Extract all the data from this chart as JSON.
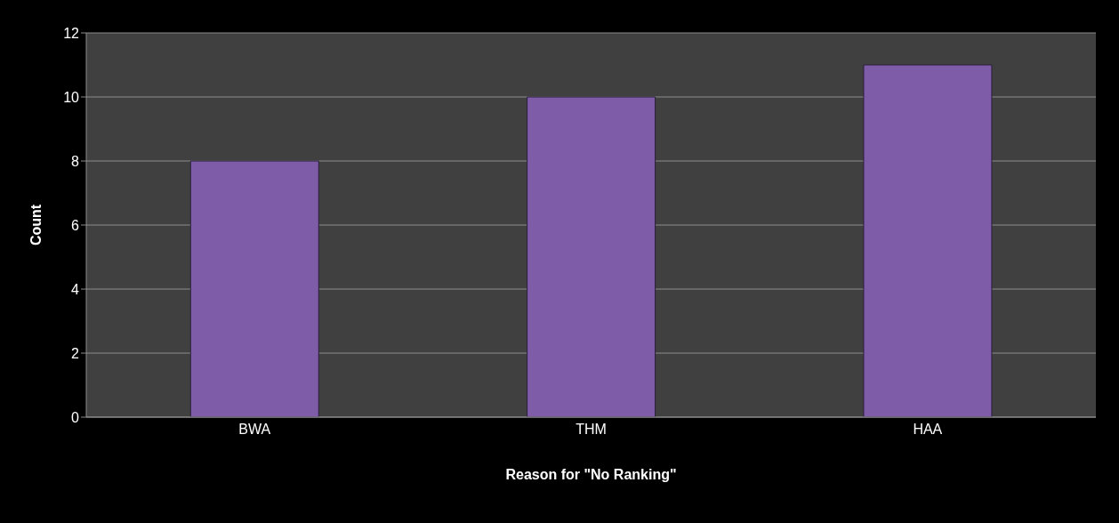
{
  "chart_data": {
    "type": "bar",
    "xlabel": "Reason for \"No Ranking\"",
    "ylabel": "Count",
    "categories": [
      "BWA",
      "THM",
      "HAA"
    ],
    "values": [
      8,
      10,
      11
    ],
    "color": "#7e5ca8",
    "ylim": [
      0,
      12
    ],
    "yticks": [
      0,
      2,
      4,
      6,
      8,
      10,
      12
    ],
    "grid": "y"
  }
}
